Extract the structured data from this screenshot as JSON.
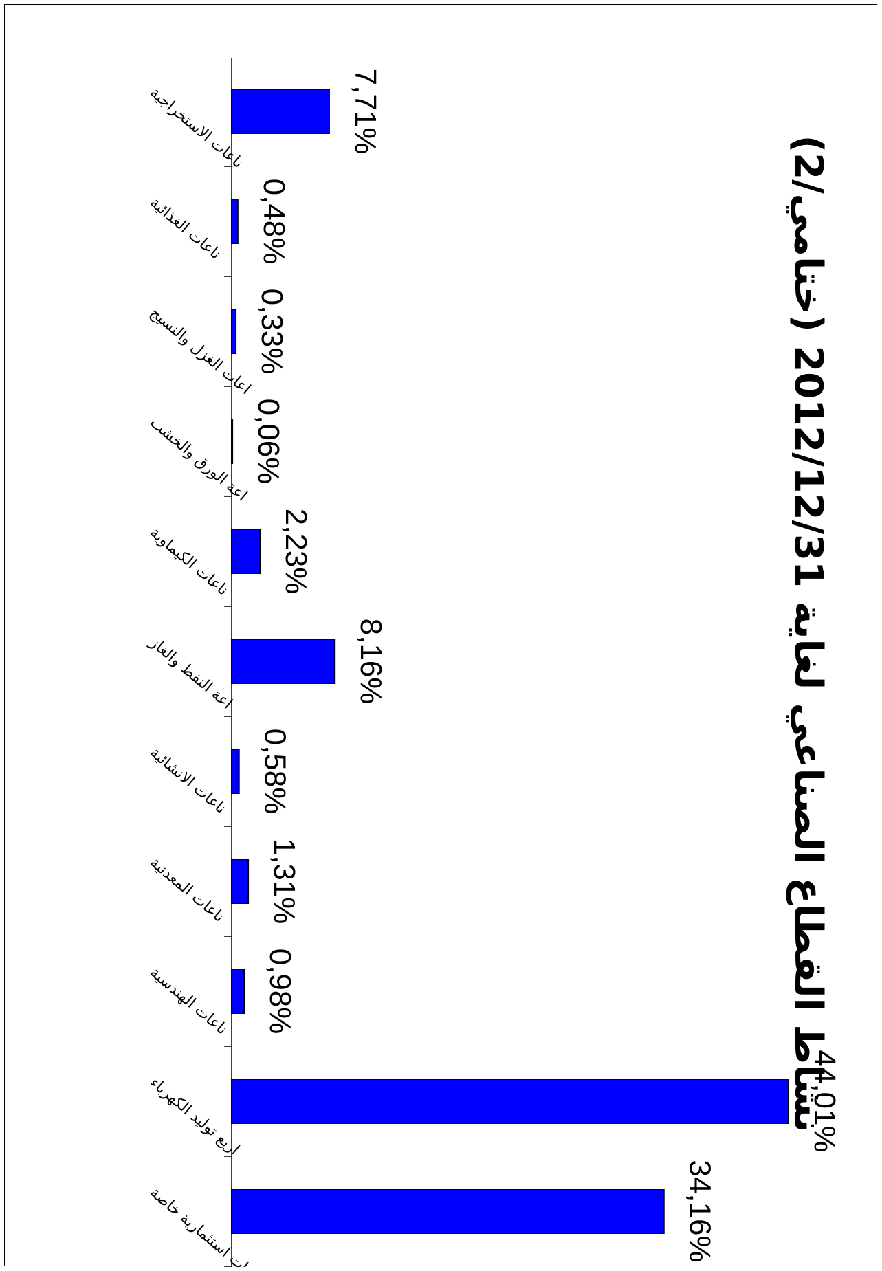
{
  "chart_data": {
    "type": "bar",
    "orientation": "rotated-90",
    "title": "نشاط القطاع الصناعي لغاية 2012/12/31 (ختامي/2)",
    "categories": [
      "ناعات الاستخراجية",
      "ناعات الغذائية",
      "اعات الغزل والنسيج",
      "اعة الورق والخشب",
      "ناعات الكيماوية",
      "اعة النفط والغاز",
      "ناعات الانشائية",
      "ناعات المعدنية",
      "ناعات الهندسية",
      "اريع توليد الكهرباء",
      "ات استثمارية خاصة"
    ],
    "values": [
      7.71,
      0.48,
      0.33,
      0.06,
      2.23,
      8.16,
      0.58,
      1.31,
      0.98,
      44.01,
      34.16
    ],
    "value_labels": [
      "7,71%",
      "0,48%",
      "0,33%",
      "0,06%",
      "2,23%",
      "8,16%",
      "0,58%",
      "1,31%",
      "0,98%",
      "44,01%",
      "34,16%"
    ],
    "ylim": [
      0,
      45
    ],
    "grid": false,
    "legend": "none",
    "bar_color": "#0000FF",
    "bar_edge_color": "#000000"
  }
}
